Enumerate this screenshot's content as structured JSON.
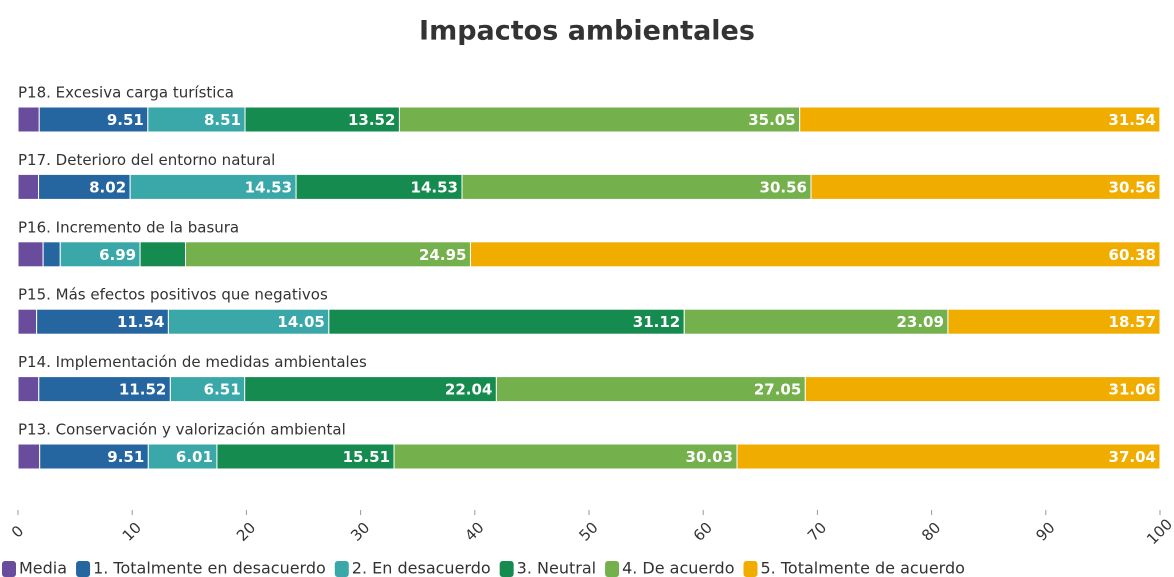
{
  "chart_data": {
    "type": "stacked_bar_horizontal",
    "title": "Impactos ambientales",
    "categories": [
      "P18. Excesiva carga turística",
      "P17. Deterioro del entorno natural",
      "P16. Incremento de la basura",
      "P15. Más efectos positivos que negativos",
      "P14. Implementación de medidas ambientales",
      "P13. Conservación y valorización ambiental"
    ],
    "series": [
      {
        "name": "Media",
        "color": "#6a4c9c",
        "values": [
          1.86,
          1.8,
          2.2,
          1.63,
          1.82,
          1.9
        ]
      },
      {
        "name": "1. Totalmente en desacuerdo",
        "color": "#2566a0",
        "values": [
          9.51,
          8.02,
          1.5,
          11.54,
          11.52,
          9.51
        ]
      },
      {
        "name": "2. En desacuerdo",
        "color": "#3aa8a8",
        "values": [
          8.51,
          14.53,
          6.99,
          14.05,
          6.51,
          6.01
        ]
      },
      {
        "name": "3. Neutral",
        "color": "#168b4f",
        "values": [
          13.52,
          14.53,
          3.98,
          31.12,
          22.04,
          15.51
        ]
      },
      {
        "name": "4. De acuerdo",
        "color": "#74b04b",
        "values": [
          35.05,
          30.56,
          24.95,
          23.09,
          27.05,
          30.03
        ]
      },
      {
        "name": "5. Totalmente de acuerdo",
        "color": "#f0ad00",
        "values": [
          31.54,
          30.56,
          60.38,
          18.57,
          31.06,
          37.04
        ]
      }
    ],
    "xlim": [
      0,
      100
    ],
    "xticks": [
      0,
      10,
      20,
      30,
      40,
      50,
      60,
      70,
      80,
      90,
      100
    ]
  }
}
